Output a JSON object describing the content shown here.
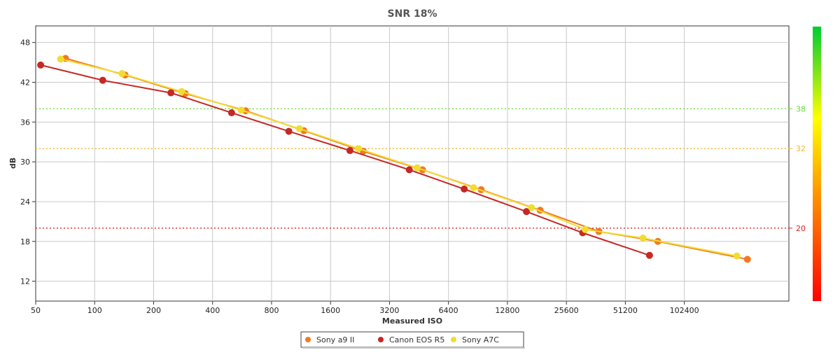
{
  "chart_data": {
    "type": "line",
    "title": "SNR 18%",
    "xlabel": "Measured ISO",
    "ylabel": "dB",
    "x_scale": "log2",
    "x_ticks": [
      "50",
      "100",
      "200",
      "400",
      "800",
      "1600",
      "3200",
      "6400",
      "12800",
      "25600",
      "51200",
      "102400"
    ],
    "y_ticks": [
      "12",
      "18",
      "24",
      "30",
      "36",
      "42",
      "48"
    ],
    "xlim": [
      50,
      350000
    ],
    "ylim": [
      9,
      50.5
    ],
    "grid": true,
    "reference_lines": [
      {
        "value": 38,
        "label": "38",
        "color": "#66dd33"
      },
      {
        "value": 32,
        "label": "32",
        "color": "#f5b52a"
      },
      {
        "value": 20,
        "label": "20",
        "color": "#dd2222"
      }
    ],
    "colorbar": {
      "colors": [
        "#ff0000",
        "#ff8000",
        "#ffff00",
        "#00cc33"
      ]
    },
    "legend_position": "bottom-center",
    "series": [
      {
        "name": "Sony a9 II",
        "color": "#f07a22",
        "points": [
          [
            71,
            45.6
          ],
          [
            143,
            43.1
          ],
          [
            290,
            40.3
          ],
          [
            590,
            37.7
          ],
          [
            1170,
            34.7
          ],
          [
            2350,
            31.6
          ],
          [
            4720,
            28.8
          ],
          [
            9400,
            25.8
          ],
          [
            18800,
            22.7
          ],
          [
            37500,
            19.5
          ],
          [
            75000,
            18.0
          ],
          [
            215000,
            15.3
          ]
        ]
      },
      {
        "name": "Canon EOS R5",
        "color": "#c62824",
        "points": [
          [
            53,
            44.6
          ],
          [
            110,
            42.3
          ],
          [
            245,
            40.4
          ],
          [
            500,
            37.4
          ],
          [
            980,
            34.6
          ],
          [
            2010,
            31.7
          ],
          [
            4040,
            28.8
          ],
          [
            7700,
            25.9
          ],
          [
            16000,
            22.5
          ],
          [
            31000,
            19.3
          ],
          [
            68000,
            15.9
          ]
        ]
      },
      {
        "name": "Sony A7C",
        "color": "#f2dc32",
        "points": [
          [
            67,
            45.5
          ],
          [
            138,
            43.3
          ],
          [
            278,
            40.6
          ],
          [
            560,
            37.8
          ],
          [
            1110,
            35.0
          ],
          [
            2220,
            32.0
          ],
          [
            4430,
            29.1
          ],
          [
            8600,
            26.1
          ],
          [
            17000,
            23.1
          ],
          [
            31900,
            19.8
          ],
          [
            63000,
            18.5
          ],
          [
            190000,
            15.8
          ]
        ]
      }
    ]
  }
}
